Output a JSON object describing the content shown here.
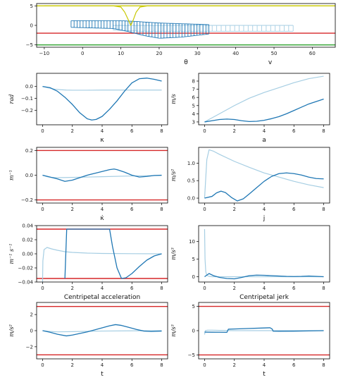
{
  "colors": {
    "dark": "#1f77b4",
    "light": "#a6cee3",
    "red": "#d62728",
    "yellow": "#c8c800",
    "green": "#2ca02c"
  },
  "chart_data": [
    {
      "id": "top",
      "type": "line",
      "title": "",
      "xlabel": "θ",
      "ylabel": "",
      "xlim": [
        -12,
        66
      ],
      "ylim": [
        -5.6,
        5.6
      ],
      "xticks": [
        -10,
        0,
        10,
        20,
        30,
        40,
        50,
        60
      ],
      "yticks": [
        -5,
        0,
        5
      ],
      "extra_xlabel": "v",
      "hlines": [
        {
          "y": 5,
          "color": "yellow"
        },
        {
          "y": -2,
          "color": "red"
        },
        {
          "y": -5,
          "color": "green"
        }
      ],
      "yellow_curve": {
        "x": [
          -10,
          8,
          10,
          11,
          12,
          12.6,
          13.2,
          14,
          15,
          17,
          20,
          30,
          62
        ],
        "y": [
          5,
          5,
          4.7,
          3.4,
          1.3,
          0,
          1.3,
          3.4,
          4.7,
          5,
          5,
          5,
          5
        ]
      },
      "envelopes": [
        {
          "color": "light",
          "xstart": 8,
          "xend": 55,
          "top": {
            "x": [
              8,
              15,
              30,
              55
            ],
            "y": [
              0,
              0,
              0,
              0
            ]
          },
          "bottom": {
            "x": [
              8,
              15,
              30,
              55
            ],
            "y": [
              -1.2,
              -1.5,
              -1.5,
              -1.5
            ]
          },
          "n": 40
        },
        {
          "color": "dark",
          "xstart": -3,
          "xend": 33,
          "top": {
            "x": [
              -3,
              10,
              14,
              20,
              33
            ],
            "y": [
              1.2,
              1.2,
              1.0,
              0.6,
              0.2
            ]
          },
          "bottom": {
            "x": [
              -3,
              8,
              12,
              16,
              20,
              26,
              33
            ],
            "y": [
              -0.5,
              -0.8,
              -1.6,
              -2.6,
              -3.3,
              -3.0,
              -2.2
            ]
          },
          "n": 46
        }
      ]
    },
    {
      "id": "kappa",
      "type": "line",
      "title": "",
      "xlabel": "κ",
      "ylabel": "rad",
      "xlim": [
        -0.4,
        8.4
      ],
      "ylim": [
        -0.32,
        0.11
      ],
      "xticks": [
        0,
        2,
        4,
        6,
        8
      ],
      "yticks": [
        0.0,
        -0.1,
        -0.2
      ],
      "series": [
        {
          "color": "light",
          "x": [
            0,
            0.4,
            0.8,
            1.2,
            1.6,
            2,
            3,
            4,
            5,
            6,
            7,
            8
          ],
          "y": [
            0,
            -0.012,
            -0.022,
            -0.027,
            -0.03,
            -0.031,
            -0.031,
            -0.03,
            -0.03,
            -0.03,
            -0.03,
            -0.03
          ]
        },
        {
          "color": "dark",
          "x": [
            0,
            0.5,
            1,
            1.5,
            2,
            2.5,
            3,
            3.3,
            3.6,
            4,
            4.5,
            5,
            5.5,
            6,
            6.5,
            7,
            7.5,
            8
          ],
          "y": [
            0,
            -0.01,
            -0.04,
            -0.09,
            -0.15,
            -0.22,
            -0.27,
            -0.28,
            -0.275,
            -0.25,
            -0.19,
            -0.12,
            -0.04,
            0.03,
            0.065,
            0.07,
            0.06,
            0.045
          ]
        }
      ]
    },
    {
      "id": "v",
      "type": "line",
      "title": "",
      "xlabel": "a",
      "ylabel": "m/s",
      "xlim": [
        -0.4,
        8.4
      ],
      "ylim": [
        2.65,
        8.95
      ],
      "xticks": [
        0,
        2,
        4,
        6,
        8
      ],
      "yticks": [
        3,
        4,
        5,
        6,
        7,
        8
      ],
      "series": [
        {
          "color": "light",
          "x": [
            0,
            0.5,
            1,
            2,
            3,
            4,
            5,
            6,
            7,
            8
          ],
          "y": [
            3,
            3.5,
            4.0,
            5.0,
            5.9,
            6.6,
            7.2,
            7.8,
            8.3,
            8.6
          ]
        },
        {
          "color": "dark",
          "x": [
            0,
            0.5,
            1,
            1.5,
            2,
            2.5,
            3,
            3.5,
            4,
            4.5,
            5,
            5.5,
            6,
            6.5,
            7,
            7.5,
            8
          ],
          "y": [
            3,
            3.15,
            3.3,
            3.35,
            3.3,
            3.15,
            3.05,
            3.08,
            3.2,
            3.4,
            3.65,
            4.0,
            4.4,
            4.8,
            5.2,
            5.5,
            5.8
          ]
        }
      ]
    },
    {
      "id": "kdot",
      "type": "line",
      "title": "",
      "xlabel": "κ̇",
      "ylabel": "m⁻¹",
      "xlim": [
        -0.4,
        8.4
      ],
      "ylim": [
        -0.225,
        0.225
      ],
      "xticks": [
        0,
        2,
        4,
        6,
        8
      ],
      "yticks": [
        0.2,
        0.0,
        -0.2
      ],
      "hlines": [
        {
          "y": 0.2,
          "color": "red"
        },
        {
          "y": -0.2,
          "color": "red"
        }
      ],
      "series": [
        {
          "color": "light",
          "x": [
            0,
            0.3,
            0.6,
            1,
            2,
            4,
            6,
            8
          ],
          "y": [
            0,
            -0.012,
            -0.018,
            -0.02,
            -0.018,
            -0.012,
            -0.006,
            -0.002
          ]
        },
        {
          "color": "dark",
          "x": [
            0,
            0.5,
            1,
            1.5,
            2,
            2.5,
            3,
            3.5,
            4,
            4.5,
            4.8,
            5,
            5.5,
            6,
            6.5,
            7,
            7.5,
            8
          ],
          "y": [
            0,
            -0.015,
            -0.03,
            -0.05,
            -0.04,
            -0.02,
            0,
            0.015,
            0.03,
            0.045,
            0.05,
            0.045,
            0.025,
            0,
            -0.015,
            -0.01,
            -0.002,
            0
          ]
        }
      ]
    },
    {
      "id": "a",
      "type": "line",
      "title": "",
      "xlabel": "j",
      "ylabel": "m/s²",
      "xlim": [
        -0.4,
        8.4
      ],
      "ylim": [
        -0.14,
        1.45
      ],
      "xticks": [
        0,
        2,
        4,
        6,
        8
      ],
      "yticks": [
        0.0,
        0.5,
        1.0
      ],
      "series": [
        {
          "color": "light",
          "x": [
            0,
            0.15,
            0.3,
            0.6,
            1,
            2,
            3,
            4,
            5,
            6,
            7,
            8
          ],
          "y": [
            0,
            1.1,
            1.38,
            1.34,
            1.25,
            1.05,
            0.88,
            0.72,
            0.6,
            0.48,
            0.38,
            0.3
          ]
        },
        {
          "color": "dark",
          "x": [
            0,
            0.5,
            0.8,
            1.1,
            1.4,
            1.8,
            2.2,
            2.6,
            3,
            3.5,
            4,
            4.5,
            5,
            5.5,
            6,
            6.5,
            7,
            7.5,
            8
          ],
          "y": [
            0,
            0.05,
            0.15,
            0.2,
            0.16,
            0.02,
            -0.08,
            -0.02,
            0.12,
            0.3,
            0.48,
            0.62,
            0.7,
            0.72,
            0.7,
            0.66,
            0.6,
            0.56,
            0.55
          ]
        }
      ]
    },
    {
      "id": "kddot",
      "type": "line",
      "title": "",
      "xlabel": "Centripetal acceleration",
      "ylabel": "m⁻¹ s⁻¹",
      "xlim": [
        -0.4,
        8.4
      ],
      "ylim": [
        -0.04,
        0.04
      ],
      "xticks": [
        0,
        2,
        4,
        6,
        8
      ],
      "yticks": [
        0.04,
        0.02,
        0.0,
        -0.02,
        -0.04
      ],
      "hlines": [
        {
          "y": 0.035,
          "color": "red"
        },
        {
          "y": -0.035,
          "color": "red"
        }
      ],
      "series": [
        {
          "color": "light",
          "x": [
            0,
            0.02,
            0.1,
            0.3,
            0.6,
            1,
            1.5,
            2,
            3,
            4,
            6,
            8
          ],
          "y": [
            -0.04,
            -0.01,
            0.006,
            0.009,
            0.007,
            0.005,
            0.003,
            0.002,
            0.001,
            0.0005,
            0.0002,
            0
          ]
        },
        {
          "color": "dark",
          "x": [
            1.5,
            1.56,
            1.62,
            2,
            4,
            4.5,
            4.7,
            5,
            5.3,
            5.6,
            6,
            6.5,
            7,
            7.5,
            8
          ],
          "y": [
            -0.035,
            0,
            0.035,
            0.035,
            0.035,
            0.035,
            0.01,
            -0.02,
            -0.035,
            -0.034,
            -0.028,
            -0.018,
            -0.009,
            -0.003,
            0
          ]
        }
      ]
    },
    {
      "id": "jerk",
      "type": "line",
      "title": "",
      "xlabel": "Centripetal jerk",
      "ylabel": "m/s³",
      "xlim": [
        -0.4,
        8.4
      ],
      "ylim": [
        -1.5,
        14.5
      ],
      "xticks": [
        0,
        2,
        4,
        6,
        8
      ],
      "yticks": [
        0,
        5,
        10
      ],
      "series": [
        {
          "color": "light",
          "x": [
            0,
            0.03,
            0.08,
            0.15,
            0.3,
            0.5,
            1,
            2,
            4,
            8
          ],
          "y": [
            13.5,
            5,
            1.4,
            0.4,
            0.1,
            0,
            0,
            0,
            0,
            0
          ]
        },
        {
          "color": "dark",
          "x": [
            0,
            0.3,
            0.6,
            1,
            1.5,
            2,
            2.5,
            3,
            3.5,
            4,
            4.5,
            5,
            5.5,
            6,
            6.5,
            7,
            7.5,
            8
          ],
          "y": [
            0,
            0.9,
            0.3,
            -0.2,
            -0.5,
            -0.6,
            -0.2,
            0.3,
            0.45,
            0.4,
            0.3,
            0.2,
            0.1,
            0.05,
            0.1,
            0.2,
            0.1,
            0
          ]
        }
      ]
    },
    {
      "id": "cacc",
      "type": "line",
      "title": "",
      "xlabel": "t",
      "ylabel": "m/s²",
      "xlim": [
        -0.4,
        8.4
      ],
      "ylim": [
        -3.5,
        3.5
      ],
      "xticks": [
        0,
        2,
        4,
        6,
        8
      ],
      "yticks": [
        2,
        0,
        -2
      ],
      "hlines": [
        {
          "y": 3,
          "color": "red"
        },
        {
          "y": -3,
          "color": "red"
        }
      ],
      "series": [
        {
          "color": "light",
          "x": [
            0,
            0.5,
            1,
            2,
            4,
            6,
            8
          ],
          "y": [
            0,
            -0.1,
            -0.15,
            -0.12,
            -0.05,
            -0.02,
            0
          ]
        },
        {
          "color": "dark",
          "x": [
            0,
            0.5,
            1,
            1.6,
            2,
            2.5,
            3,
            3.5,
            4,
            4.5,
            4.9,
            5.3,
            5.8,
            6.3,
            6.8,
            7.3,
            8
          ],
          "y": [
            0,
            -0.2,
            -0.45,
            -0.65,
            -0.55,
            -0.35,
            -0.15,
            0.1,
            0.35,
            0.6,
            0.75,
            0.65,
            0.4,
            0.15,
            -0.05,
            -0.1,
            -0.05
          ]
        }
      ]
    },
    {
      "id": "cjerk",
      "type": "line",
      "title": "",
      "xlabel": "t",
      "ylabel": "m/s³",
      "xlim": [
        -0.4,
        8.4
      ],
      "ylim": [
        -5.8,
        5.8
      ],
      "xticks": [
        0,
        2,
        4,
        6,
        8
      ],
      "yticks": [
        5,
        0,
        -5
      ],
      "hlines": [
        {
          "y": 5,
          "color": "red"
        },
        {
          "y": -5,
          "color": "red"
        }
      ],
      "series": [
        {
          "color": "light",
          "x": [
            0,
            0.05,
            0.2,
            0.5,
            1,
            2,
            4,
            6,
            8
          ],
          "y": [
            -0.8,
            0,
            0.1,
            0.1,
            0.05,
            0,
            0,
            0,
            0
          ]
        },
        {
          "color": "dark",
          "x": [
            0,
            0.5,
            1,
            1.5,
            1.55,
            1.6,
            2,
            3,
            4,
            4.4,
            4.55,
            4.6,
            5,
            6,
            7,
            8
          ],
          "y": [
            -0.3,
            -0.32,
            -0.33,
            -0.34,
            0,
            0.3,
            0.35,
            0.45,
            0.55,
            0.6,
            0.3,
            -0.1,
            -0.12,
            -0.1,
            -0.05,
            0
          ]
        }
      ]
    }
  ]
}
